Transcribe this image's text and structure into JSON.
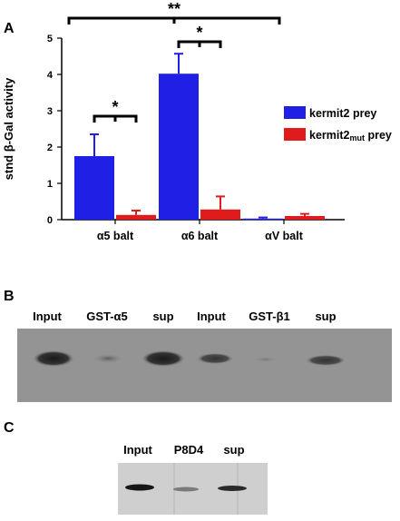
{
  "panels": {
    "a": {
      "letter": "A"
    },
    "b": {
      "letter": "B",
      "lanes": [
        "Input",
        "GST-α5",
        "sup",
        "Input",
        "GST-β1",
        "sup"
      ]
    },
    "c": {
      "letter": "C",
      "lanes": [
        "Input",
        "P8D4",
        "sup"
      ]
    }
  },
  "chart_data": {
    "type": "bar",
    "ylabel": "stnd β-Gal activity",
    "ylim": [
      0,
      5
    ],
    "yticks": [
      0,
      1,
      2,
      3,
      4,
      5
    ],
    "categories": [
      "α5 balt",
      "α6 balt",
      "αV balt"
    ],
    "series": [
      {
        "name": "kermit2 prey",
        "color": "#1f1fe6",
        "values": [
          1.75,
          4.02,
          0.03
        ],
        "errors": [
          0.6,
          0.55,
          0.03
        ]
      },
      {
        "name": "kermit2mut prey",
        "name_base": "kermit2",
        "name_sub": "mut",
        "name_tail": " prey",
        "color": "#e01b1b",
        "values": [
          0.13,
          0.28,
          0.1
        ],
        "errors": [
          0.12,
          0.36,
          0.06
        ]
      }
    ],
    "significance": [
      {
        "label": "*",
        "between": "α5 balt kermit2 vs kermit2mut"
      },
      {
        "label": "*",
        "between": "α6 balt kermit2 vs kermit2mut"
      },
      {
        "label": "**",
        "between": "α5 balt vs αV balt"
      }
    ],
    "legend": "right"
  }
}
